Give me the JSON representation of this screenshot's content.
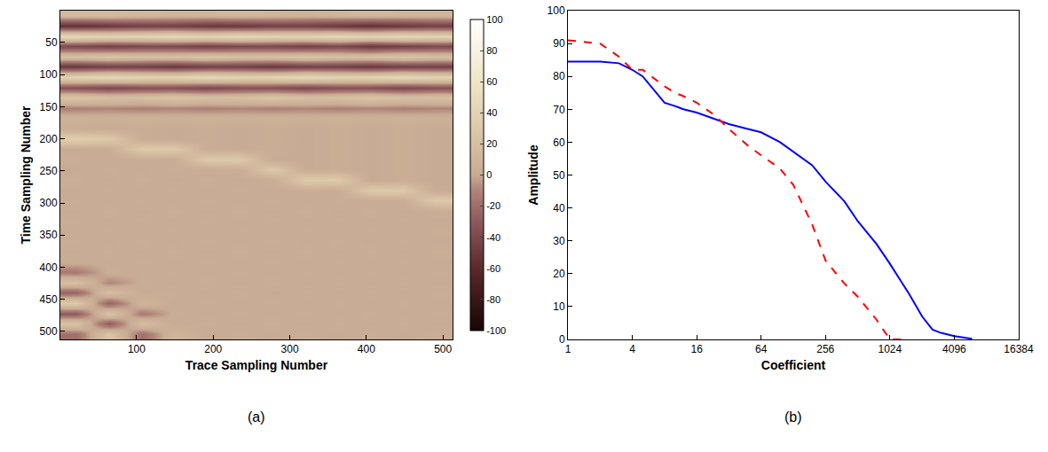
{
  "chart_data": [
    {
      "type": "heatmap",
      "caption": "(a)",
      "x_label": "Trace Sampling Number",
      "y_label": "Time Sampling Number",
      "xlim": [
        0.5,
        512.5
      ],
      "ylim": [
        512.5,
        0.5
      ],
      "xticks": [
        100,
        200,
        300,
        400,
        500
      ],
      "yticks": [
        50,
        100,
        150,
        200,
        250,
        300,
        350,
        400,
        450,
        500
      ],
      "x": [
        21,
        64,
        107,
        149,
        192,
        235,
        277,
        320,
        363,
        405,
        448,
        491
      ],
      "y": [
        8,
        24,
        40,
        56,
        72,
        88,
        104,
        120,
        136,
        152,
        168,
        184,
        200,
        216,
        232,
        248,
        264,
        280,
        296,
        312,
        328,
        344,
        360,
        376,
        392,
        408,
        424,
        440,
        456,
        472,
        488,
        504
      ],
      "z": [
        [
          15,
          15,
          12,
          10,
          10,
          12,
          10,
          8,
          10,
          12,
          10,
          10
        ],
        [
          -55,
          -50,
          -45,
          -45,
          -50,
          -50,
          -45,
          -45,
          -50,
          -55,
          -50,
          -45
        ],
        [
          45,
          40,
          40,
          45,
          40,
          45,
          40,
          40,
          45,
          40,
          45,
          40
        ],
        [
          -40,
          -45,
          -40,
          -40,
          -45,
          -40,
          -40,
          -45,
          -40,
          -50,
          -45,
          -40
        ],
        [
          20,
          25,
          20,
          20,
          25,
          20,
          20,
          25,
          20,
          20,
          25,
          20
        ],
        [
          -50,
          -45,
          -45,
          -50,
          -45,
          -45,
          -50,
          -45,
          -45,
          -50,
          -45,
          -45
        ],
        [
          40,
          45,
          40,
          40,
          45,
          40,
          40,
          45,
          40,
          40,
          45,
          40
        ],
        [
          -35,
          -40,
          -35,
          -35,
          -40,
          -35,
          -35,
          -40,
          -35,
          -35,
          -40,
          -35
        ],
        [
          25,
          20,
          20,
          25,
          20,
          20,
          25,
          20,
          20,
          25,
          20,
          20
        ],
        [
          -12,
          -10,
          -12,
          -10,
          -12,
          -10,
          -12,
          -10,
          -12,
          -10,
          -12,
          -10
        ],
        [
          6,
          5,
          6,
          5,
          6,
          5,
          6,
          5,
          6,
          5,
          6,
          5
        ],
        [
          2,
          0,
          2,
          0,
          2,
          0,
          2,
          0,
          2,
          0,
          2,
          0
        ],
        [
          35,
          30,
          2,
          0,
          2,
          0,
          2,
          0,
          2,
          0,
          2,
          0
        ],
        [
          0,
          2,
          30,
          30,
          2,
          0,
          2,
          0,
          2,
          0,
          2,
          0
        ],
        [
          2,
          0,
          2,
          0,
          30,
          30,
          0,
          0,
          2,
          0,
          2,
          0
        ],
        [
          0,
          2,
          0,
          2,
          0,
          2,
          30,
          0,
          2,
          0,
          2,
          0
        ],
        [
          2,
          0,
          2,
          0,
          2,
          0,
          2,
          30,
          30,
          0,
          2,
          0
        ],
        [
          0,
          2,
          0,
          2,
          0,
          2,
          0,
          2,
          0,
          30,
          30,
          0
        ],
        [
          2,
          0,
          2,
          0,
          2,
          0,
          2,
          0,
          2,
          0,
          2,
          30
        ],
        [
          0,
          2,
          0,
          2,
          0,
          2,
          0,
          2,
          0,
          2,
          0,
          2
        ],
        [
          2,
          0,
          2,
          0,
          2,
          0,
          2,
          0,
          2,
          0,
          2,
          0
        ],
        [
          0,
          2,
          0,
          2,
          0,
          2,
          0,
          2,
          0,
          2,
          0,
          2
        ],
        [
          2,
          0,
          2,
          0,
          2,
          0,
          2,
          0,
          2,
          0,
          2,
          0
        ],
        [
          0,
          2,
          0,
          2,
          0,
          2,
          0,
          2,
          0,
          2,
          0,
          2
        ],
        [
          2,
          0,
          2,
          0,
          2,
          0,
          2,
          0,
          2,
          0,
          2,
          0
        ],
        [
          -15,
          3,
          0,
          2,
          0,
          2,
          0,
          2,
          0,
          2,
          0,
          2
        ],
        [
          20,
          -10,
          2,
          0,
          2,
          0,
          2,
          0,
          2,
          0,
          2,
          0
        ],
        [
          -25,
          20,
          0,
          2,
          0,
          2,
          0,
          2,
          0,
          2,
          0,
          2
        ],
        [
          30,
          -25,
          10,
          0,
          2,
          0,
          2,
          0,
          2,
          0,
          2,
          0
        ],
        [
          -30,
          25,
          -15,
          2,
          0,
          2,
          0,
          2,
          0,
          2,
          0,
          2
        ],
        [
          25,
          -30,
          20,
          0,
          2,
          0,
          2,
          0,
          2,
          0,
          2,
          0
        ],
        [
          -20,
          25,
          -20,
          10,
          0,
          2,
          0,
          2,
          0,
          2,
          0,
          2
        ]
      ],
      "colorbar": {
        "range": [
          -100,
          100
        ],
        "ticks": [
          -100,
          -80,
          -60,
          -40,
          -20,
          0,
          20,
          40,
          60,
          80,
          100
        ]
      }
    },
    {
      "type": "line",
      "caption": "(b)",
      "x_label": "Coefficient",
      "y_label": "Amplitude",
      "log": "x",
      "xlim": [
        1,
        16384
      ],
      "ylim": [
        0,
        100
      ],
      "xticks": [
        1,
        4,
        16,
        64,
        256,
        1024,
        4096,
        16384
      ],
      "yticks": [
        0,
        10,
        20,
        30,
        40,
        50,
        60,
        70,
        80,
        90,
        100
      ],
      "x": [
        1,
        2,
        3,
        4,
        5,
        6,
        8,
        10,
        12,
        16,
        24,
        32,
        48,
        64,
        96,
        128,
        192,
        256,
        384,
        512,
        768,
        1024,
        1536,
        2048,
        2560,
        3072,
        4096,
        6000
      ],
      "series": [
        {
          "color": "#0000ff",
          "line_style": "solid",
          "values": [
            84.5,
            84.5,
            84,
            82,
            80,
            77,
            72,
            71,
            70,
            69,
            67,
            65.5,
            64,
            63,
            60,
            57,
            53,
            48,
            42,
            36,
            29,
            23,
            14,
            7,
            3,
            2,
            1,
            0.2
          ]
        },
        {
          "color": "#ff0000",
          "line_style": "dash",
          "values": [
            91,
            90,
            86,
            82,
            82,
            80,
            77,
            75,
            74,
            72,
            68,
            64,
            59,
            56,
            52,
            47,
            35,
            24,
            17,
            13,
            6,
            0,
            0,
            null,
            null,
            null,
            null,
            null
          ]
        }
      ]
    }
  ]
}
